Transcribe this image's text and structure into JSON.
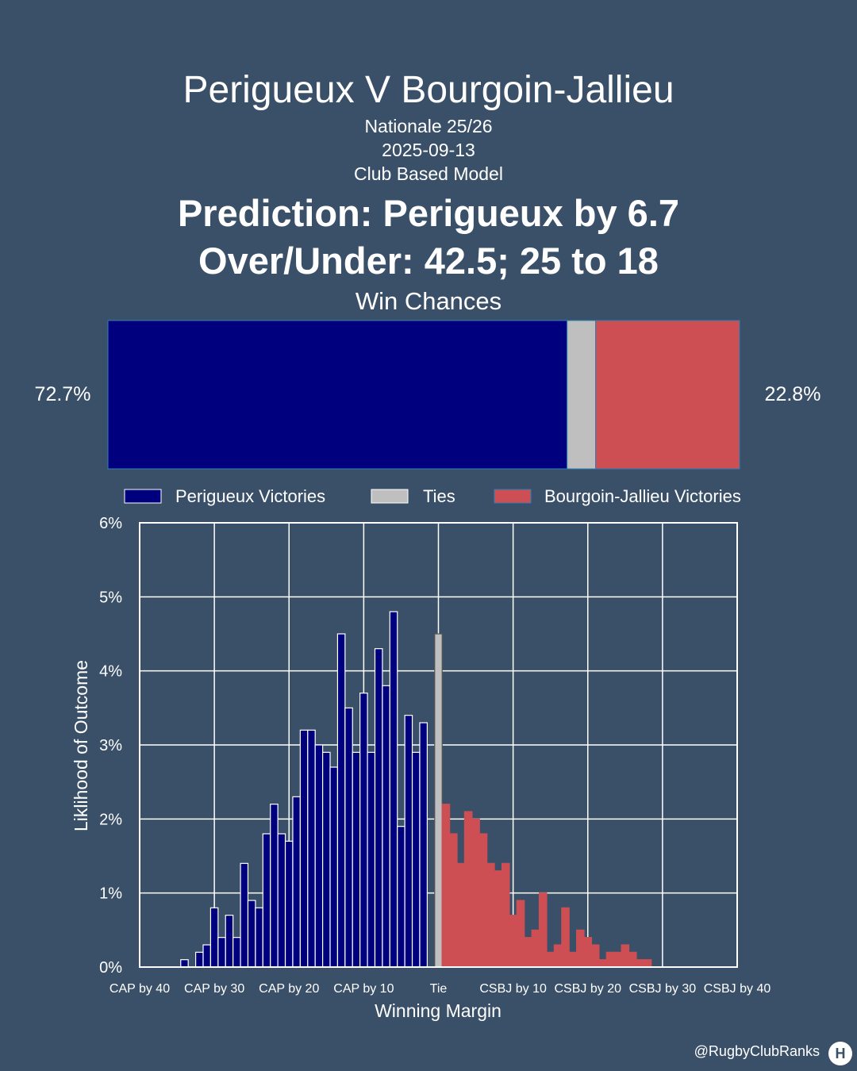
{
  "header": {
    "title": "Perigueux V Bourgoin-Jallieu",
    "competition": "Nationale 25/26",
    "date": "2025-09-13",
    "model": "Club Based Model",
    "prediction": "Prediction: Perigueux by 6.7",
    "over_under": "Over/Under: 42.5; 25 to 18",
    "win_chances_title": "Win Chances"
  },
  "win_chances": {
    "home_pct": 72.7,
    "tie_pct": 4.5,
    "away_pct": 22.8,
    "home_label": "72.7%",
    "away_label": "22.8%"
  },
  "legend": [
    {
      "label": "Perigueux Victories",
      "color": "#00007f"
    },
    {
      "label": "Ties",
      "color": "#bfbfbf"
    },
    {
      "label": "Bourgoin-Jallieu Victories",
      "color": "#cd4f54"
    }
  ],
  "colors": {
    "background": "#3a5068",
    "home": "#00007f",
    "tie": "#bfbfbf",
    "away": "#cd4f54",
    "grid": "#ffffff"
  },
  "chart_data": {
    "type": "bar",
    "xlabel": "Winning Margin",
    "ylabel": "Liklihood of Outcome",
    "xlim": [
      -40,
      40
    ],
    "ylim": [
      0,
      6
    ],
    "grid": true,
    "legend_position": "top",
    "x_ticks": [
      {
        "value": -40,
        "label": "CAP by 40"
      },
      {
        "value": -30,
        "label": "CAP by 30"
      },
      {
        "value": -20,
        "label": "CAP by 20"
      },
      {
        "value": -10,
        "label": "CAP by 10"
      },
      {
        "value": 0,
        "label": "Tie"
      },
      {
        "value": 10,
        "label": "CSBJ by 10"
      },
      {
        "value": 20,
        "label": "CSBJ by 20"
      },
      {
        "value": 30,
        "label": "CSBJ by 30"
      },
      {
        "value": 40,
        "label": "CSBJ by 40"
      }
    ],
    "y_ticks": [
      {
        "value": 0,
        "label": "0%"
      },
      {
        "value": 1,
        "label": "1%"
      },
      {
        "value": 2,
        "label": "2%"
      },
      {
        "value": 3,
        "label": "3%"
      },
      {
        "value": 4,
        "label": "4%"
      },
      {
        "value": 5,
        "label": "5%"
      },
      {
        "value": 6,
        "label": "6%"
      }
    ],
    "series": [
      {
        "name": "Perigueux Victories",
        "x": [
          -34,
          -33,
          -32,
          -31,
          -30,
          -29,
          -28,
          -27,
          -26,
          -25,
          -24,
          -23,
          -22,
          -21,
          -20,
          -19,
          -18,
          -17,
          -16,
          -15,
          -14,
          -13,
          -12,
          -11,
          -10,
          -9,
          -8,
          -7,
          -6,
          -5,
          -4,
          -3,
          -2,
          -1
        ],
        "values": [
          0.1,
          0.0,
          0.2,
          0.3,
          0.8,
          0.4,
          0.7,
          0.4,
          1.4,
          0.9,
          0.8,
          1.8,
          2.2,
          1.8,
          1.7,
          2.3,
          3.2,
          3.2,
          3.0,
          2.9,
          2.7,
          4.5,
          3.5,
          2.9,
          3.7,
          2.9,
          4.3,
          3.8,
          4.8,
          1.9,
          3.4,
          2.9,
          3.3,
          0.0
        ]
      },
      {
        "name": "Ties",
        "x": [
          0
        ],
        "values": [
          4.5
        ]
      },
      {
        "name": "Bourgoin-Jallieu Victories",
        "x": [
          1,
          2,
          3,
          4,
          5,
          6,
          7,
          8,
          9,
          10,
          11,
          12,
          13,
          14,
          15,
          16,
          17,
          18,
          19,
          20,
          21,
          22,
          23,
          24,
          25,
          26,
          27,
          28
        ],
        "values": [
          2.2,
          1.8,
          1.4,
          2.1,
          2.0,
          1.8,
          1.4,
          1.3,
          1.4,
          0.7,
          0.9,
          0.4,
          0.5,
          1.0,
          0.2,
          0.3,
          0.8,
          0.2,
          0.5,
          0.4,
          0.3,
          0.1,
          0.2,
          0.2,
          0.3,
          0.2,
          0.1,
          0.1
        ]
      }
    ]
  },
  "footer": {
    "handle": "@RugbyClubRanks",
    "logo_glyph": "H"
  }
}
